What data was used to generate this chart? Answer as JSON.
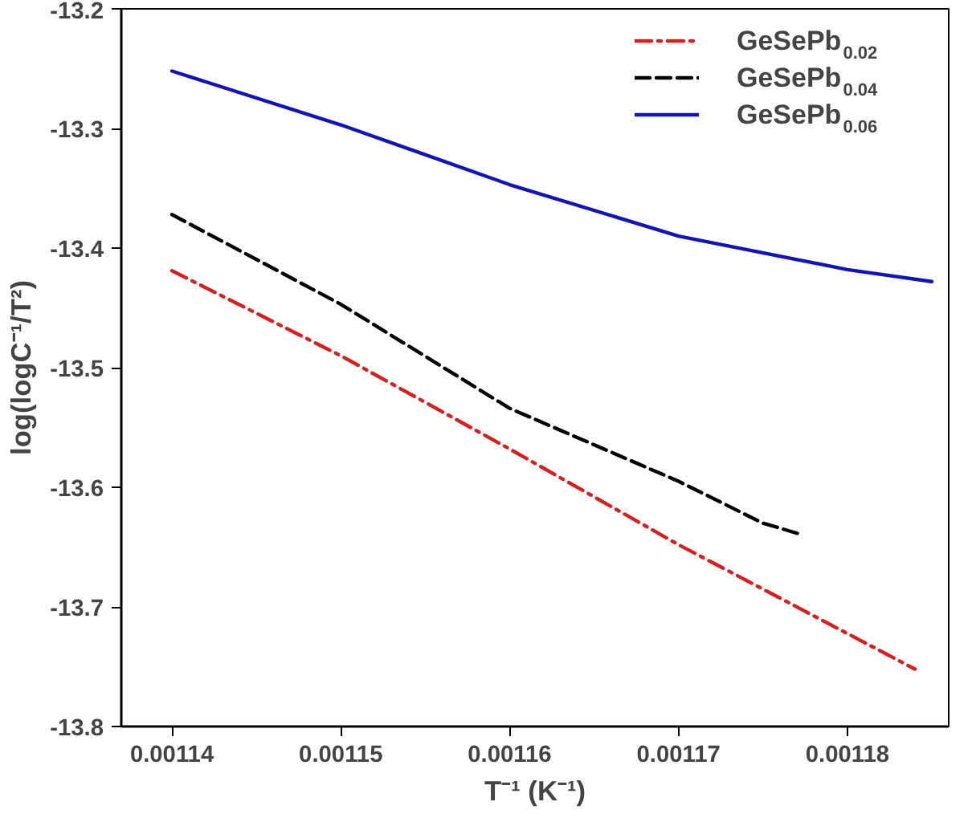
{
  "chart_data": {
    "type": "line",
    "xlabel": "T⁻¹ (K⁻¹)",
    "ylabel": "log(logC⁻¹/T²)",
    "xlim": [
      0.001137,
      0.001186
    ],
    "ylim": [
      -13.8,
      -13.2
    ],
    "xticks": [
      {
        "value": 0.00114,
        "label": "0.00114"
      },
      {
        "value": 0.00115,
        "label": "0.00115"
      },
      {
        "value": 0.00116,
        "label": "0.00116"
      },
      {
        "value": 0.00117,
        "label": "0.00117"
      },
      {
        "value": 0.00118,
        "label": "0.00118"
      }
    ],
    "yticks": [
      -13.8,
      -13.7,
      -13.6,
      -13.5,
      -13.4,
      -13.3,
      -13.2
    ],
    "grid": false,
    "legend": "top right",
    "series": [
      {
        "name": "GeSePb$_{0.02}$",
        "color": "#d62020",
        "line_style": "dashdot",
        "x": [
          0.00114,
          0.00115,
          0.00116,
          0.00117,
          0.001184
        ],
        "values": [
          -13.419,
          -13.49,
          -13.568,
          -13.648,
          -13.752
        ]
      },
      {
        "name": "GeSePb$_{0.04}$",
        "color": "#000000",
        "line_style": "dashed",
        "x": [
          0.00114,
          0.00115,
          0.00116,
          0.00117,
          0.001175,
          0.0011774
        ],
        "values": [
          -13.372,
          -13.447,
          -13.534,
          -13.595,
          -13.63,
          -13.64
        ]
      },
      {
        "name": "GeSePb$_{0.06}$",
        "color": "#1414b4",
        "line_style": "solid",
        "x": [
          0.00114,
          0.00115,
          0.00116,
          0.00117,
          0.00118,
          0.001185
        ],
        "values": [
          -13.252,
          -13.297,
          -13.347,
          -13.39,
          -13.418,
          -13.428
        ]
      }
    ]
  }
}
